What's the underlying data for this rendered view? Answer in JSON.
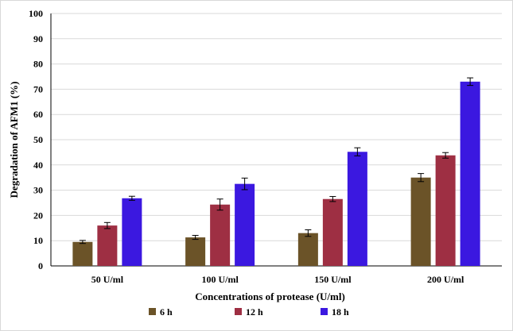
{
  "chart_data": {
    "type": "bar",
    "categories": [
      "50 U/ml",
      "100 U/ml",
      "150 U/ml",
      "200 U/ml"
    ],
    "series": [
      {
        "name": "6 h",
        "color": "#6b5328",
        "values": [
          9.5,
          11.3,
          13.0,
          35.0
        ],
        "errors": [
          0.6,
          0.8,
          1.3,
          1.6
        ]
      },
      {
        "name": "12 h",
        "color": "#9e2f43",
        "values": [
          16.0,
          24.3,
          26.5,
          43.8
        ],
        "errors": [
          1.2,
          2.2,
          1.0,
          1.1
        ]
      },
      {
        "name": "18 h",
        "color": "#3b18e0",
        "values": [
          26.8,
          32.5,
          45.2,
          73.0
        ],
        "errors": [
          0.8,
          2.3,
          1.6,
          1.5
        ]
      }
    ],
    "xlabel": "Concentrations of protease (U/ml)",
    "ylabel": "Degradation of AFM1 (%)",
    "ylim": [
      0,
      100
    ],
    "yticks": [
      0,
      10,
      20,
      30,
      40,
      50,
      60,
      70,
      80,
      90,
      100
    ],
    "grid": true,
    "legend": "bottom"
  }
}
